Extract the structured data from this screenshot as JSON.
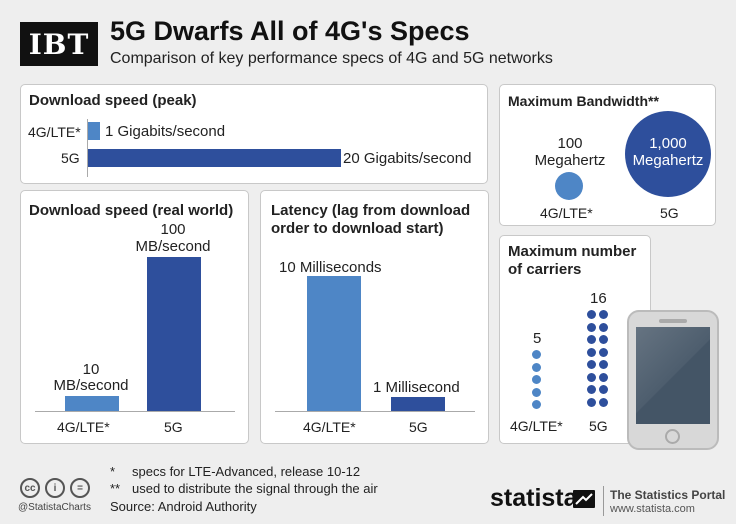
{
  "header": {
    "logo": "IBT",
    "title": "5G Dwarfs All of 4G's Specs",
    "subtitle": "Comparison of key performance specs of 4G and 5G networks"
  },
  "colors": {
    "light_blue": "#4e86c6",
    "dark_blue": "#2e4f9c"
  },
  "panels": {
    "peak": {
      "title": "Download speed (peak)",
      "label_4g": "4G/LTE*",
      "label_5g": "5G",
      "value_4g_text": "1 Gigabits/second",
      "value_5g_text": "20 Gigabits/second"
    },
    "real": {
      "title": "Download speed (real world)",
      "value_4g": "10",
      "unit_4g": "MB/second",
      "value_5g": "100",
      "unit_5g": "MB/second",
      "label_4g": "4G/LTE*",
      "label_5g": "5G"
    },
    "latency": {
      "title_line1": "Latency (lag from download",
      "title_line2": "order to download start)",
      "value_4g_text": "10 Milliseconds",
      "value_5g_text": "1 Millisecond",
      "label_4g": "4G/LTE*",
      "label_5g": "5G"
    },
    "bandwidth": {
      "title": "Maximum Bandwidth**",
      "value_4g_line1": "100",
      "value_4g_line2": "Megahertz",
      "value_5g_line1": "1,000",
      "value_5g_line2": "Megahertz",
      "label_4g": "4G/LTE*",
      "label_5g": "5G"
    },
    "carriers": {
      "title_line1": "Maximum number",
      "title_line2": "of carriers",
      "value_4g": "5",
      "value_5g": "16",
      "label_4g": "4G/LTE*",
      "label_5g": "5G"
    }
  },
  "chart_data": [
    {
      "type": "bar",
      "title": "Download speed (peak)",
      "unit": "Gigabits/second",
      "categories": [
        "4G/LTE*",
        "5G"
      ],
      "values": [
        1,
        20
      ]
    },
    {
      "type": "bar",
      "title": "Download speed (real world)",
      "unit": "MB/second",
      "categories": [
        "4G/LTE*",
        "5G"
      ],
      "values": [
        10,
        100
      ]
    },
    {
      "type": "bar",
      "title": "Latency (lag from download order to download start)",
      "unit": "Milliseconds",
      "categories": [
        "4G/LTE*",
        "5G"
      ],
      "values": [
        10,
        1
      ]
    },
    {
      "type": "scatter",
      "title": "Maximum Bandwidth**",
      "unit": "Megahertz",
      "categories": [
        "4G/LTE*",
        "5G"
      ],
      "values": [
        100,
        1000
      ]
    },
    {
      "type": "bar",
      "title": "Maximum number of carriers",
      "categories": [
        "4G/LTE*",
        "5G"
      ],
      "values": [
        5,
        16
      ]
    }
  ],
  "footer": {
    "note1_mark": "*",
    "note1": "specs for LTE-Advanced, release 10-12",
    "note2_mark": "**",
    "note2": "used to distribute the signal through the air",
    "handle": "@StatistaCharts",
    "source": "Source: Android Authority",
    "brand": "statista",
    "portal_line1": "The Statistics Portal",
    "portal_line2": "www.statista.com"
  }
}
